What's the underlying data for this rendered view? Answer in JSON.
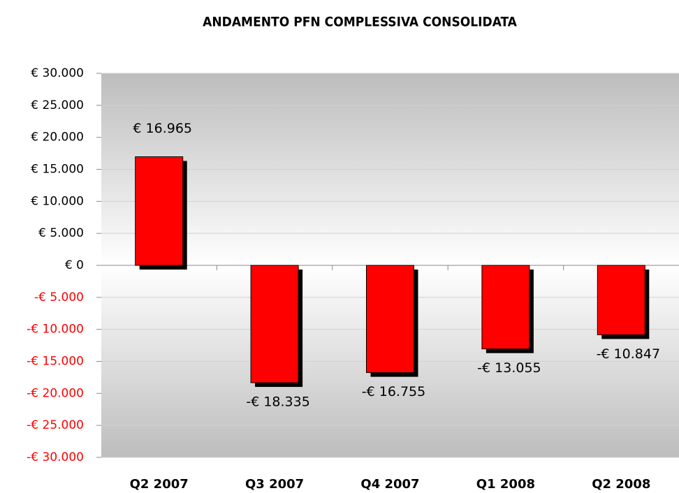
{
  "chart_data": {
    "type": "bar",
    "title": "ANDAMENTO PFN COMPLESSIVA CONSOLIDATA",
    "categories": [
      "Q2 2007",
      "Q3 2007",
      "Q4 2007",
      "Q1 2008",
      "Q2 2008"
    ],
    "values": [
      16965,
      -18335,
      -16755,
      -13055,
      -10847
    ],
    "value_labels": [
      "€ 16.965",
      "-€ 18.335",
      "-€ 16.755",
      "-€ 13.055",
      "-€ 10.847"
    ],
    "color": "#ff0000",
    "shadow_color": "#000000",
    "negative_tick_color": "#ff0000",
    "ylim": [
      -30000,
      30000
    ],
    "yticks": [
      {
        "value": 30000,
        "label": "€ 30.000"
      },
      {
        "value": 25000,
        "label": "€ 25.000"
      },
      {
        "value": 20000,
        "label": "€ 20.000"
      },
      {
        "value": 15000,
        "label": "€ 15.000"
      },
      {
        "value": 10000,
        "label": "€ 10.000"
      },
      {
        "value": 5000,
        "label": "€ 5.000"
      },
      {
        "value": 0,
        "label": "€ 0"
      },
      {
        "value": -5000,
        "label": "-€ 5.000"
      },
      {
        "value": -10000,
        "label": "-€ 10.000"
      },
      {
        "value": -15000,
        "label": "-€ 15.000"
      },
      {
        "value": -20000,
        "label": "-€ 20.000"
      },
      {
        "value": -25000,
        "label": "-€ 25.000"
      },
      {
        "value": -30000,
        "label": "-€ 30.000"
      }
    ],
    "grid": true
  }
}
